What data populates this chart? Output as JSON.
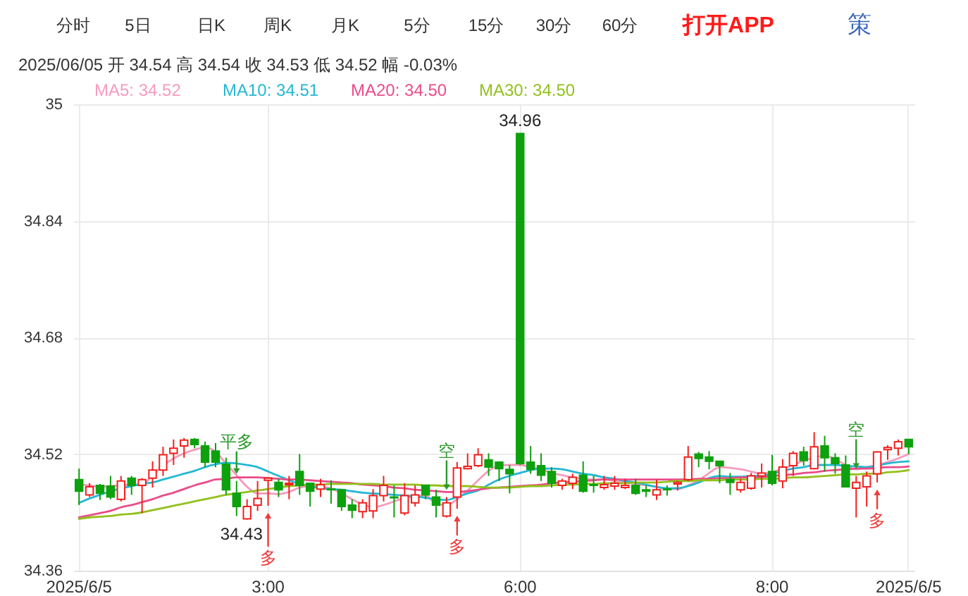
{
  "chart_data": {
    "type": "candlestick",
    "subtitle": "2025/06/05 开 34.54 高 34.54 收 34.53 低 34.52 幅 -0.03%",
    "categories": [
      "2025/6/5",
      null,
      null,
      null,
      null,
      null,
      null,
      null,
      null,
      null,
      null,
      null,
      null,
      null,
      null,
      null,
      null,
      null,
      "3:00",
      null,
      null,
      null,
      null,
      null,
      null,
      null,
      null,
      null,
      null,
      null,
      null,
      null,
      null,
      null,
      null,
      null,
      null,
      null,
      null,
      null,
      null,
      null,
      "6:00",
      null,
      null,
      null,
      null,
      null,
      null,
      null,
      null,
      null,
      null,
      null,
      null,
      null,
      null,
      null,
      null,
      null,
      null,
      null,
      null,
      null,
      null,
      null,
      "8:00",
      null,
      null,
      null,
      null,
      null,
      null,
      null,
      null,
      null,
      null,
      null,
      null,
      "2025/6/5"
    ],
    "ohlc": [
      [
        34.485,
        34.5,
        34.45,
        34.469
      ],
      [
        34.464,
        34.48,
        34.461,
        34.475
      ],
      [
        34.477,
        34.479,
        34.457,
        34.466
      ],
      [
        34.476,
        34.49,
        34.458,
        34.461
      ],
      [
        34.458,
        34.49,
        34.455,
        34.483
      ],
      [
        34.487,
        34.49,
        34.464,
        34.477
      ],
      [
        34.477,
        34.487,
        34.439,
        34.485
      ],
      [
        34.487,
        34.51,
        34.474,
        34.498
      ],
      [
        34.498,
        34.53,
        34.49,
        34.519
      ],
      [
        34.521,
        34.54,
        34.505,
        34.528
      ],
      [
        34.531,
        34.542,
        34.515,
        34.539
      ],
      [
        34.54,
        34.542,
        34.528,
        34.533
      ],
      [
        34.531,
        34.537,
        34.502,
        34.509
      ],
      [
        34.524,
        34.535,
        34.502,
        34.509
      ],
      [
        34.506,
        34.515,
        34.464,
        34.471
      ],
      [
        34.466,
        34.483,
        34.435,
        34.448
      ],
      [
        34.431,
        34.458,
        34.43,
        34.448
      ],
      [
        34.45,
        34.483,
        34.442,
        34.459
      ],
      [
        34.484,
        34.488,
        34.449,
        34.487
      ],
      [
        34.481,
        34.486,
        34.461,
        34.471
      ],
      [
        34.478,
        34.49,
        34.458,
        34.48
      ],
      [
        34.496,
        34.52,
        34.464,
        34.477
      ],
      [
        34.48,
        34.48,
        34.448,
        34.469
      ],
      [
        34.472,
        34.486,
        34.461,
        34.478
      ],
      [
        34.472,
        34.484,
        34.452,
        34.471
      ],
      [
        34.471,
        34.472,
        34.442,
        34.448
      ],
      [
        34.45,
        34.458,
        34.432,
        34.443
      ],
      [
        34.441,
        34.458,
        34.432,
        34.453
      ],
      [
        34.442,
        34.472,
        34.432,
        34.463
      ],
      [
        34.463,
        34.49,
        34.455,
        34.477
      ],
      [
        34.461,
        34.477,
        34.433,
        34.46
      ],
      [
        34.439,
        34.48,
        34.436,
        34.463
      ],
      [
        34.453,
        34.477,
        34.448,
        34.464
      ],
      [
        34.477,
        34.477,
        34.458,
        34.464
      ],
      [
        34.461,
        34.471,
        34.433,
        34.45
      ],
      [
        34.435,
        34.461,
        34.433,
        34.453
      ],
      [
        34.461,
        34.509,
        34.445,
        34.501
      ],
      [
        34.5,
        34.521,
        34.499,
        34.503
      ],
      [
        34.504,
        34.528,
        34.502,
        34.519
      ],
      [
        34.512,
        34.521,
        34.49,
        34.502
      ],
      [
        34.509,
        34.51,
        34.483,
        34.5
      ],
      [
        34.499,
        34.505,
        34.466,
        34.493
      ],
      [
        34.96,
        34.96,
        34.505,
        34.507
      ],
      [
        34.509,
        34.531,
        34.493,
        34.499
      ],
      [
        34.504,
        34.521,
        34.483,
        34.491
      ],
      [
        34.496,
        34.502,
        34.474,
        34.48
      ],
      [
        34.477,
        34.486,
        34.471,
        34.483
      ],
      [
        34.48,
        34.493,
        34.472,
        34.488
      ],
      [
        34.491,
        34.51,
        34.467,
        34.469
      ],
      [
        34.478,
        34.49,
        34.467,
        34.477
      ],
      [
        34.474,
        34.49,
        34.471,
        34.478
      ],
      [
        34.476,
        34.49,
        34.471,
        34.48
      ],
      [
        34.474,
        34.486,
        34.472,
        34.477
      ],
      [
        34.477,
        34.486,
        34.464,
        34.466
      ],
      [
        34.471,
        34.477,
        34.461,
        34.469
      ],
      [
        34.464,
        34.485,
        34.457,
        34.471
      ],
      [
        34.472,
        34.477,
        34.463,
        34.471
      ],
      [
        34.479,
        34.483,
        34.47,
        34.481
      ],
      [
        34.485,
        34.531,
        34.483,
        34.516
      ],
      [
        34.52,
        34.523,
        34.502,
        34.514
      ],
      [
        34.516,
        34.524,
        34.499,
        34.51
      ],
      [
        34.51,
        34.51,
        34.48,
        34.504
      ],
      [
        34.485,
        34.494,
        34.464,
        34.481
      ],
      [
        34.471,
        34.486,
        34.467,
        34.481
      ],
      [
        34.473,
        34.494,
        34.471,
        34.49
      ],
      [
        34.49,
        34.507,
        34.474,
        34.494
      ],
      [
        34.496,
        34.519,
        34.477,
        34.48
      ],
      [
        34.483,
        34.513,
        34.473,
        34.502
      ],
      [
        34.504,
        34.524,
        34.49,
        34.521
      ],
      [
        34.523,
        34.53,
        34.504,
        34.511
      ],
      [
        34.5,
        34.55,
        34.499,
        34.53
      ],
      [
        34.531,
        34.545,
        34.496,
        34.515
      ],
      [
        34.515,
        34.521,
        34.493,
        34.507
      ],
      [
        34.505,
        34.518,
        34.474,
        34.475
      ],
      [
        34.473,
        34.49,
        34.433,
        34.481
      ],
      [
        34.475,
        34.496,
        34.448,
        34.49
      ],
      [
        34.493,
        34.524,
        34.481,
        34.523
      ],
      [
        34.526,
        34.532,
        34.512,
        34.529
      ],
      [
        34.528,
        34.54,
        34.518,
        34.537
      ],
      [
        34.54,
        34.54,
        34.52,
        34.53
      ]
    ],
    "colors": [
      "#0ea10e",
      "#f2201d",
      "#0ea10e",
      "#0ea10e",
      "#f2201d",
      "#0ea10e",
      "#f2201d",
      "#f2201d",
      "#f2201d",
      "#f2201d",
      "#f2201d",
      "#0ea10e",
      "#0ea10e",
      "#0ea10e",
      "#0ea10e",
      "#0ea10e",
      "#f2201d",
      "#f2201d",
      "#f2201d",
      "#0ea10e",
      "#f2201d",
      "#0ea10e",
      "#0ea10e",
      "#f2201d",
      "#0ea10e",
      "#0ea10e",
      "#0ea10e",
      "#f2201d",
      "#f2201d",
      "#f2201d",
      "#0ea10e",
      "#f2201d",
      "#f2201d",
      "#0ea10e",
      "#0ea10e",
      "#f2201d",
      "#f2201d",
      "#f2201d",
      "#f2201d",
      "#0ea10e",
      "#0ea10e",
      "#0ea10e",
      "#0ea10e",
      "#0ea10e",
      "#0ea10e",
      "#0ea10e",
      "#f2201d",
      "#f2201d",
      "#0ea10e",
      "#0ea10e",
      "#f2201d",
      "#f2201d",
      "#f2201d",
      "#0ea10e",
      "#0ea10e",
      "#f2201d",
      "#0ea10e",
      "#f2201d",
      "#f2201d",
      "#0ea10e",
      "#0ea10e",
      "#0ea10e",
      "#0ea10e",
      "#f2201d",
      "#f2201d",
      "#f2201d",
      "#0ea10e",
      "#f2201d",
      "#f2201d",
      "#0ea10e",
      "#f2201d",
      "#0ea10e",
      "#0ea10e",
      "#0ea10e",
      "#f2201d",
      "#f2201d",
      "#f2201d",
      "#f2201d",
      "#f2201d",
      "#0ea10e"
    ],
    "series": [
      {
        "name": "MA5: 34.52",
        "type": "line",
        "color": "#f59bbd",
        "values": [
          34.478,
          34.477,
          34.475,
          34.476,
          34.477,
          34.478,
          34.478,
          34.491,
          34.504,
          34.514,
          34.521,
          34.526,
          34.529,
          34.523,
          34.507,
          34.491,
          34.475,
          34.466,
          34.466,
          34.465,
          34.468,
          34.474,
          34.476,
          34.475,
          34.473,
          34.466,
          34.458,
          34.451,
          34.447,
          34.45,
          34.455,
          34.46,
          34.462,
          34.463,
          34.452,
          34.45,
          34.458,
          34.47,
          34.484,
          34.497,
          34.504,
          34.505,
          34.505,
          34.502,
          34.499,
          34.494,
          34.491,
          34.488,
          34.486,
          34.485,
          34.485,
          34.483,
          34.481,
          34.479,
          34.477,
          34.475,
          34.472,
          34.472,
          34.477,
          34.484,
          34.494,
          34.502,
          34.501,
          34.499,
          34.496,
          34.493,
          34.495,
          34.5,
          34.505,
          34.511,
          34.515,
          34.518,
          34.513,
          34.505,
          34.499,
          34.502,
          34.505,
          34.509,
          34.514,
          34.52
        ]
      },
      {
        "name": "MA10: 34.51",
        "type": "line",
        "color": "#25b7d3",
        "values": [
          34.453,
          34.459,
          34.464,
          34.469,
          34.473,
          34.476,
          34.479,
          34.481,
          34.485,
          34.489,
          34.493,
          34.497,
          34.502,
          34.506,
          34.508,
          34.507,
          34.505,
          34.502,
          34.496,
          34.49,
          34.484,
          34.479,
          34.476,
          34.473,
          34.472,
          34.471,
          34.469,
          34.467,
          34.466,
          34.465,
          34.464,
          34.463,
          34.462,
          34.46,
          34.458,
          34.457,
          34.461,
          34.466,
          34.47,
          34.478,
          34.485,
          34.49,
          34.494,
          34.498,
          34.5,
          34.5,
          34.499,
          34.496,
          34.493,
          34.491,
          34.488,
          34.486,
          34.483,
          34.481,
          34.478,
          34.475,
          34.473,
          34.473,
          34.476,
          34.481,
          34.487,
          34.49,
          34.489,
          34.489,
          34.49,
          34.49,
          34.493,
          34.497,
          34.5,
          34.502,
          34.505,
          34.505,
          34.505,
          34.504,
          34.503,
          34.502,
          34.504,
          34.507,
          34.509,
          34.51
        ]
      },
      {
        "name": "MA20: 34.50",
        "type": "line",
        "color": "#ea4c89",
        "values": [
          34.433,
          34.436,
          34.439,
          34.442,
          34.447,
          34.45,
          34.454,
          34.458,
          34.463,
          34.467,
          34.472,
          34.477,
          34.481,
          34.485,
          34.486,
          34.488,
          34.488,
          34.488,
          34.487,
          34.486,
          34.485,
          34.485,
          34.484,
          34.483,
          34.482,
          34.481,
          34.48,
          34.478,
          34.477,
          34.476,
          34.474,
          34.473,
          34.471,
          34.47,
          34.469,
          34.468,
          34.468,
          34.469,
          34.471,
          34.473,
          34.474,
          34.475,
          34.476,
          34.477,
          34.478,
          34.48,
          34.481,
          34.482,
          34.483,
          34.484,
          34.485,
          34.485,
          34.485,
          34.485,
          34.485,
          34.485,
          34.485,
          34.485,
          34.485,
          34.486,
          34.486,
          34.487,
          34.487,
          34.488,
          34.488,
          34.488,
          34.49,
          34.491,
          34.492,
          34.494,
          34.495,
          34.497,
          34.498,
          34.499,
          34.5,
          34.5,
          34.501,
          34.502,
          34.502,
          34.503
        ]
      },
      {
        "name": "MA30: 34.50",
        "type": "line",
        "color": "#92c01d",
        "values": [
          34.431,
          34.433,
          34.434,
          34.435,
          34.437,
          34.438,
          34.44,
          34.443,
          34.446,
          34.449,
          34.452,
          34.455,
          34.458,
          34.461,
          34.464,
          34.466,
          34.468,
          34.47,
          34.472,
          34.474,
          34.476,
          34.477,
          34.478,
          34.478,
          34.479,
          34.479,
          34.479,
          34.479,
          34.479,
          34.478,
          34.478,
          34.478,
          34.478,
          34.477,
          34.477,
          34.476,
          34.476,
          34.476,
          34.475,
          34.474,
          34.474,
          34.474,
          34.475,
          34.476,
          34.476,
          34.477,
          34.478,
          34.478,
          34.479,
          34.479,
          34.48,
          34.48,
          34.48,
          34.481,
          34.481,
          34.481,
          34.482,
          34.483,
          34.483,
          34.484,
          34.484,
          34.484,
          34.485,
          34.485,
          34.485,
          34.486,
          34.486,
          34.487,
          34.488,
          34.488,
          34.489,
          34.49,
          34.491,
          34.492,
          34.492,
          34.493,
          34.493,
          34.495,
          34.496,
          34.498
        ]
      }
    ],
    "ylim": [
      34.36,
      35
    ],
    "yticks": [
      34.36,
      34.52,
      34.68,
      34.84,
      35
    ],
    "grid": true,
    "legend": "top left",
    "annotations": [
      "分时",
      "5日",
      "日K",
      "周K",
      "月K",
      "5分",
      "15分",
      "30分",
      "60分",
      "打开APP",
      "策",
      {
        "text": "34.96",
        "x": "6:00",
        "y": 34.96
      },
      {
        "text": "34.43",
        "y": 34.43
      },
      "平多",
      "多",
      "空",
      "多",
      "空",
      "多"
    ]
  }
}
